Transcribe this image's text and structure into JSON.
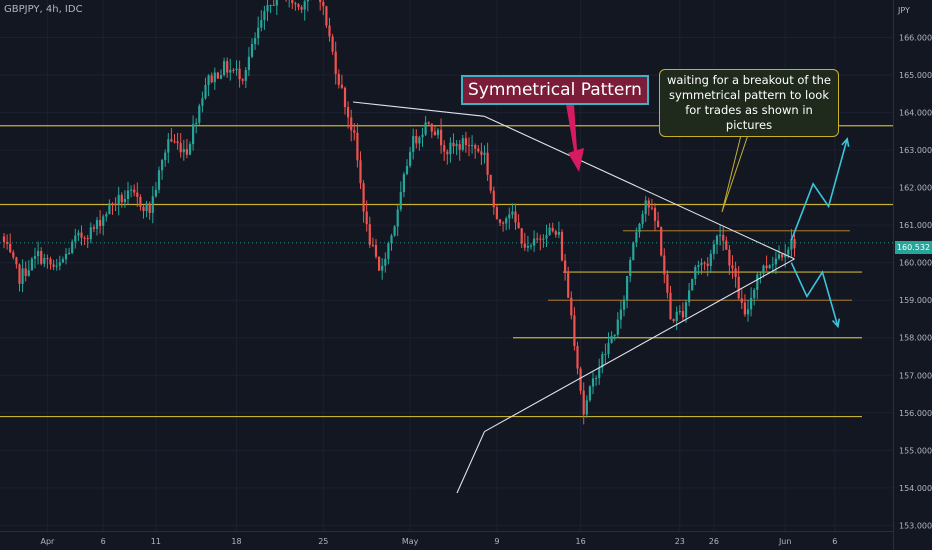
{
  "header": {
    "symbol": "GBPJPY, 4h, IDC"
  },
  "currency": "JPY",
  "last_price": "160.532",
  "annotations": {
    "title": "Symmetrical Pattern",
    "note": "waiting for a breakout of the symmetrical pattern to look for trades as shown in pictures"
  },
  "colors": {
    "background": "#131722",
    "up": "#26a69a",
    "down": "#ef5350",
    "level_line": "#c8b02f",
    "arrow": "#3bc4d9",
    "trendline": "#e0e3eb",
    "pointer": "#d81b60"
  },
  "chart_data": {
    "type": "candlestick",
    "title": "",
    "y_axis": {
      "range": [
        152.85,
        167.0
      ],
      "ticks": [
        "153.000",
        "154.000",
        "155.000",
        "156.000",
        "157.000",
        "158.000",
        "159.000",
        "160.000",
        "161.000",
        "162.000",
        "163.000",
        "164.000",
        "165.000",
        "166.000"
      ]
    },
    "x_axis": {
      "ticks": [
        "Apr",
        "6",
        "11",
        "18",
        "25",
        "May",
        "9",
        "16",
        "23",
        "26",
        "Jun",
        "6"
      ]
    },
    "price_path": [
      {
        "bar": 0,
        "price": 160.7
      },
      {
        "bar": 6,
        "price": 159.6
      },
      {
        "bar": 12,
        "price": 160.2
      },
      {
        "bar": 18,
        "price": 159.8
      },
      {
        "bar": 24,
        "price": 160.6
      },
      {
        "bar": 30,
        "price": 160.9
      },
      {
        "bar": 36,
        "price": 161.6
      },
      {
        "bar": 42,
        "price": 161.8
      },
      {
        "bar": 48,
        "price": 161.4
      },
      {
        "bar": 54,
        "price": 163.3
      },
      {
        "bar": 60,
        "price": 163.0
      },
      {
        "bar": 66,
        "price": 164.8
      },
      {
        "bar": 72,
        "price": 165.2
      },
      {
        "bar": 78,
        "price": 165.0
      },
      {
        "bar": 84,
        "price": 166.4
      },
      {
        "bar": 90,
        "price": 167.3
      },
      {
        "bar": 96,
        "price": 166.8
      },
      {
        "bar": 102,
        "price": 167.5
      },
      {
        "bar": 108,
        "price": 165.2
      },
      {
        "bar": 114,
        "price": 163.3
      },
      {
        "bar": 118,
        "price": 160.9
      },
      {
        "bar": 122,
        "price": 159.7
      },
      {
        "bar": 128,
        "price": 161.3
      },
      {
        "bar": 132,
        "price": 163.1
      },
      {
        "bar": 138,
        "price": 163.8
      },
      {
        "bar": 144,
        "price": 163.0
      },
      {
        "bar": 150,
        "price": 163.2
      },
      {
        "bar": 156,
        "price": 162.9
      },
      {
        "bar": 160,
        "price": 161.0
      },
      {
        "bar": 164,
        "price": 161.4
      },
      {
        "bar": 170,
        "price": 160.3
      },
      {
        "bar": 176,
        "price": 160.9
      },
      {
        "bar": 180,
        "price": 160.7
      },
      {
        "bar": 184,
        "price": 158.6
      },
      {
        "bar": 188,
        "price": 156.0
      },
      {
        "bar": 192,
        "price": 157.1
      },
      {
        "bar": 196,
        "price": 157.8
      },
      {
        "bar": 200,
        "price": 158.6
      },
      {
        "bar": 204,
        "price": 160.6
      },
      {
        "bar": 208,
        "price": 161.7
      },
      {
        "bar": 212,
        "price": 160.9
      },
      {
        "bar": 216,
        "price": 158.5
      },
      {
        "bar": 220,
        "price": 158.7
      },
      {
        "bar": 224,
        "price": 159.9
      },
      {
        "bar": 228,
        "price": 160.0
      },
      {
        "bar": 232,
        "price": 160.9
      },
      {
        "bar": 236,
        "price": 159.8
      },
      {
        "bar": 240,
        "price": 158.5
      },
      {
        "bar": 244,
        "price": 159.7
      },
      {
        "bar": 248,
        "price": 160.0
      },
      {
        "bar": 252,
        "price": 160.3
      },
      {
        "bar": 255,
        "price": 160.53
      }
    ],
    "levels": [
      163.65,
      161.55,
      159.75,
      158.0,
      155.9
    ],
    "trendlines": [
      {
        "name": "resistance",
        "points": [
          [
            155,
            163.9
          ],
          [
            255,
            160.1
          ]
        ]
      },
      {
        "name": "support",
        "points": [
          [
            155,
            155.5
          ],
          [
            255,
            160.1
          ]
        ]
      }
    ],
    "scenario_arrows": [
      {
        "name": "bullish",
        "path": [
          [
            254,
            160.6
          ],
          [
            261,
            162.1
          ],
          [
            266,
            161.5
          ],
          [
            272,
            163.3
          ]
        ]
      },
      {
        "name": "bearish",
        "path": [
          [
            254,
            160.0
          ],
          [
            259,
            159.1
          ],
          [
            264,
            159.75
          ],
          [
            269,
            158.3
          ]
        ]
      }
    ]
  }
}
